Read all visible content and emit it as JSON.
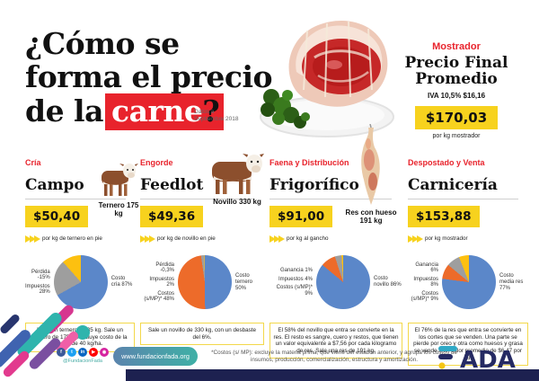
{
  "header": {
    "title_line1": "¿Cómo se",
    "title_line2": "forma el precio",
    "title_line3_prefix": "de la",
    "title_highlight": "carne",
    "title_question": "?",
    "dataset_note": "Datos a Septiembre 2018",
    "counter": {
      "label": "Mostrador",
      "title_line1": "Precio Final",
      "title_line2": "Promedio",
      "iva": "IVA 10,5% $16,16",
      "price": "$170,03",
      "unit": "por kg mostrador"
    }
  },
  "columns": [
    {
      "stage": "Cría",
      "title": "Campo",
      "price": "$50,40",
      "price_unit": "por kg de ternero en pie",
      "animal_label": "Ternero 175 kg",
      "note": "Nace un ternero de 35 kg. Sale un ternero de 175 kg. Incluye costo de la tierra de 40 kg/ha."
    },
    {
      "stage": "Engorde",
      "title": "Feedlot",
      "price": "$49,36",
      "price_unit": "por kg de novillo en pie",
      "animal_label": "Novillo 330 kg",
      "note": "Sale un novillo de 330 kg, con un desbaste del 6%."
    },
    {
      "stage": "Faena y Distribución",
      "title": "Frigorífico",
      "price": "$91,00",
      "price_unit": "por kg al gancho",
      "animal_label": "Res con hueso 191 kg",
      "note": "El 58% del novillo que entra se convierte en la res. El resto es sangre, cuero y restos, que tienen un valor equivalente a $7,56 por cada kilogramo de res. Sale una res de 191 kg."
    },
    {
      "stage": "Despostado y Venta",
      "title": "Carnicería",
      "price": "$153,88",
      "price_unit": "por kg mostrador",
      "animal_label": "",
      "note": "El 76% de la res que entra se convierte en los cortes que se venden. Una parte se pierde por oreo y otra como huesos y grasa se vende a un valor promedio de $6,47 por kg."
    }
  ],
  "chart_data": [
    {
      "type": "pie",
      "title": "Campo",
      "labels": [
        "Costo cría",
        "Impuestos",
        "Pérdida"
      ],
      "display_labels": [
        "Costo cría 87%",
        "Impuestos 28%",
        "Pérdida -15%"
      ],
      "values": [
        87,
        28,
        -15
      ],
      "colors": [
        "#5b87c9",
        "#9e9e9e",
        "#fdc010"
      ]
    },
    {
      "type": "pie",
      "title": "Feedlot",
      "labels": [
        "Costo ternero",
        "Costos (s/MP)*",
        "Impuestos",
        "Pérdida"
      ],
      "display_labels": [
        "Costo ternero 50%",
        "Costos (s/MP)* 48%",
        "Impuestos 2%",
        "Pérdida -0,3%"
      ],
      "values": [
        50,
        48,
        2,
        -0.3
      ],
      "colors": [
        "#5b87c9",
        "#ed6b2a",
        "#9e9e9e",
        "#fdc010"
      ]
    },
    {
      "type": "pie",
      "title": "Frigorífico",
      "labels": [
        "Costo novillo",
        "Costos (s/MP)*",
        "Impuestos",
        "Ganancia"
      ],
      "display_labels": [
        "Costo novillo 86%",
        "Costos (s/MP)* 9%",
        "Impuestos 4%",
        "Ganancia 1%"
      ],
      "values": [
        86,
        9,
        4,
        1
      ],
      "colors": [
        "#5b87c9",
        "#ed6b2a",
        "#9e9e9e",
        "#fdc010"
      ]
    },
    {
      "type": "pie",
      "title": "Carnicería",
      "labels": [
        "Costo media res",
        "Costos (s/MP)*",
        "Impuestos",
        "Ganancia"
      ],
      "display_labels": [
        "Costo media res 77%",
        "Costos (s/MP)* 9%",
        "Impuestos 8%",
        "Ganancia 6%"
      ],
      "values": [
        77,
        9,
        8,
        6
      ],
      "colors": [
        "#5b87c9",
        "#ed6b2a",
        "#9e9e9e",
        "#fdc010"
      ]
    }
  ],
  "footer": {
    "social": [
      {
        "name": "facebook-icon",
        "glyph": "f",
        "color": "#3b5998"
      },
      {
        "name": "twitter-icon",
        "glyph": "t",
        "color": "#1da1f2"
      },
      {
        "name": "linkedin-icon",
        "glyph": "in",
        "color": "#0a66c2"
      },
      {
        "name": "youtube-icon",
        "glyph": "▶",
        "color": "#ff0000"
      },
      {
        "name": "instagram-icon",
        "glyph": "◉",
        "color": "#d6249f"
      }
    ],
    "social_handle": "@FundacionFada",
    "website": "www.fundacionfada.org",
    "footnote": "*Costos (s/ MP): excluye la materia prima, que viene del eslabón anterior, y agrupa los costos de insumos, producción, comercialización, estructura y amortización.",
    "logo_text": "ADA"
  },
  "colors": {
    "accent_red": "#e8232c",
    "accent_yellow": "#f7d21e",
    "navy": "#1d2150",
    "pie_blue": "#5b87c9",
    "pie_orange": "#ed6b2a",
    "pie_gray": "#9e9e9e",
    "pie_yellow": "#fdc010"
  }
}
